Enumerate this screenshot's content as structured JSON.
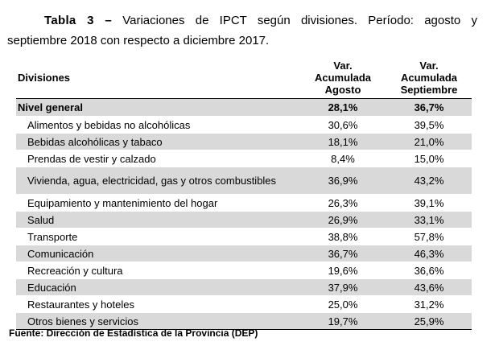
{
  "caption": {
    "label": "Tabla 3 –",
    "line1_rest": " Variaciones de IPCT según divisiones. Período: agosto y",
    "line2": "septiembre 2018 con respecto a diciembre 2017."
  },
  "table": {
    "headers": {
      "divisiones": "Divisiones",
      "agosto": [
        "Var.",
        "Acumulada",
        "Agosto"
      ],
      "septiembre": [
        "Var.",
        "Acumulada",
        "Septiembre"
      ]
    },
    "general": {
      "label": "Nivel general",
      "agosto": "28,1%",
      "septiembre": "36,7%"
    },
    "rows": [
      {
        "label": "Alimentos y bebidas no alcohólicas",
        "agosto": "30,6%",
        "septiembre": "39,5%"
      },
      {
        "label": "Bebidas alcohólicas y tabaco",
        "agosto": "18,1%",
        "septiembre": "21,0%"
      },
      {
        "label": "Prendas de vestir y calzado",
        "agosto": "8,4%",
        "septiembre": "15,0%"
      },
      {
        "label": "Vivienda, agua, electricidad, gas y otros combustibles",
        "agosto": "36,9%",
        "septiembre": "43,2%"
      },
      {
        "label": "Equipamiento y mantenimiento del hogar",
        "agosto": "26,3%",
        "septiembre": "39,1%"
      },
      {
        "label": "Salud",
        "agosto": "26,9%",
        "septiembre": "33,1%"
      },
      {
        "label": "Transporte",
        "agosto": "38,8%",
        "septiembre": "57,8%"
      },
      {
        "label": "Comunicación",
        "agosto": "36,7%",
        "septiembre": "46,3%"
      },
      {
        "label": "Recreación y cultura",
        "agosto": "19,6%",
        "septiembre": "36,6%"
      },
      {
        "label": "Educación",
        "agosto": "37,9%",
        "septiembre": "43,6%"
      },
      {
        "label": "Restaurantes y hoteles",
        "agosto": "25,0%",
        "septiembre": "31,2%"
      },
      {
        "label": "Otros bienes y servicios",
        "agosto": "19,7%",
        "septiembre": "25,9%"
      }
    ]
  },
  "source": "Fuente: Dirección de Estadística de la Provincia (DEP)",
  "colors": {
    "shade": "#d9d9d9",
    "text": "#000000"
  }
}
